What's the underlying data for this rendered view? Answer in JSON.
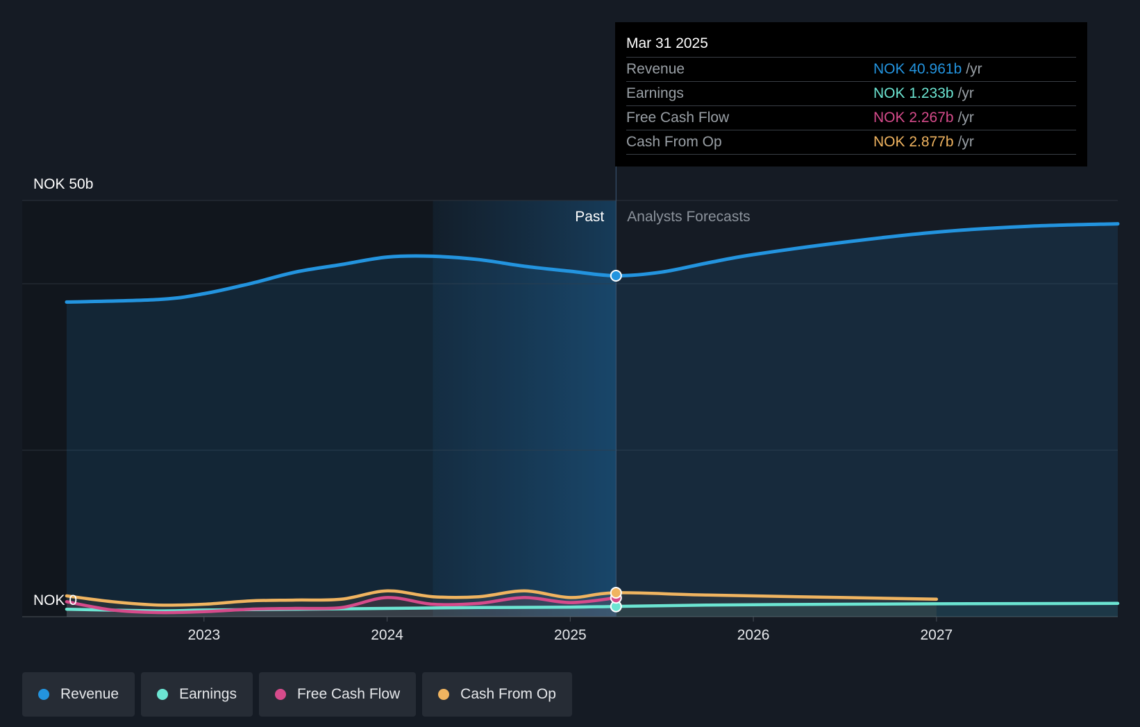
{
  "tooltip": {
    "date": "Mar 31 2025",
    "rows": [
      {
        "label": "Revenue",
        "value": "NOK 40.961b",
        "unit": "/yr",
        "color": "#2394df"
      },
      {
        "label": "Earnings",
        "value": "NOK 1.233b",
        "unit": "/yr",
        "color": "#6ce5d2"
      },
      {
        "label": "Free Cash Flow",
        "value": "NOK 2.267b",
        "unit": "/yr",
        "color": "#d64b8b"
      },
      {
        "label": "Cash From Op",
        "value": "NOK 2.877b",
        "unit": "/yr",
        "color": "#f0b460"
      }
    ]
  },
  "legend": [
    {
      "label": "Revenue",
      "color": "#2394df"
    },
    {
      "label": "Earnings",
      "color": "#6ce5d2"
    },
    {
      "label": "Free Cash Flow",
      "color": "#d64b8b"
    },
    {
      "label": "Cash From Op",
      "color": "#f0b460"
    }
  ],
  "chart_data": {
    "type": "line",
    "y_top_label": "NOK 50b",
    "y_bottom_label": "NOK 0",
    "past_label": "Past",
    "forecast_label": "Analysts Forecasts",
    "ylim": [
      0,
      50
    ],
    "xlim": [
      2022.25,
      2027.99
    ],
    "divider_x": 2025.25,
    "highlight_start": 2024.25,
    "x_ticks": [
      "2023",
      "2024",
      "2025",
      "2026",
      "2027"
    ],
    "series": [
      {
        "name": "Revenue",
        "color": "#2394df",
        "area": true,
        "x": [
          2022.25,
          2022.75,
          2023.0,
          2023.25,
          2023.5,
          2023.75,
          2024.0,
          2024.25,
          2024.5,
          2024.75,
          2025.0,
          2025.25,
          2025.5,
          2025.75,
          2026.0,
          2026.5,
          2027.0,
          2027.5,
          2027.99
        ],
        "y": [
          37.8,
          38.1,
          38.8,
          40.0,
          41.4,
          42.3,
          43.2,
          43.3,
          42.9,
          42.1,
          41.5,
          40.96,
          41.4,
          42.5,
          43.5,
          45.0,
          46.2,
          46.9,
          47.2
        ]
      },
      {
        "name": "Earnings",
        "color": "#6ce5d2",
        "x": [
          2022.25,
          2022.75,
          2023.0,
          2023.5,
          2024.0,
          2024.5,
          2025.0,
          2025.25,
          2025.75,
          2026.5,
          2027.0,
          2027.99
        ],
        "y": [
          0.9,
          0.7,
          0.8,
          0.9,
          1.0,
          1.1,
          1.15,
          1.233,
          1.4,
          1.5,
          1.55,
          1.6
        ]
      },
      {
        "name": "Free Cash Flow",
        "color": "#d64b8b",
        "x": [
          2022.25,
          2022.5,
          2022.75,
          2023.0,
          2023.25,
          2023.5,
          2023.75,
          2024.0,
          2024.25,
          2024.5,
          2024.75,
          2025.0,
          2025.25
        ],
        "y": [
          1.8,
          0.8,
          0.5,
          0.6,
          0.9,
          1.0,
          1.1,
          2.3,
          1.5,
          1.6,
          2.3,
          1.7,
          2.267
        ]
      },
      {
        "name": "Cash From Op",
        "color": "#f0b460",
        "x": [
          2022.25,
          2022.5,
          2022.75,
          2023.0,
          2023.25,
          2023.5,
          2023.75,
          2024.0,
          2024.25,
          2024.5,
          2024.75,
          2025.0,
          2025.25,
          2025.75,
          2026.5,
          2027.0
        ],
        "y": [
          2.5,
          1.8,
          1.4,
          1.5,
          1.9,
          2.0,
          2.1,
          3.1,
          2.4,
          2.4,
          3.1,
          2.3,
          2.877,
          2.6,
          2.3,
          2.1
        ]
      }
    ],
    "markers_at": 2025.25
  }
}
